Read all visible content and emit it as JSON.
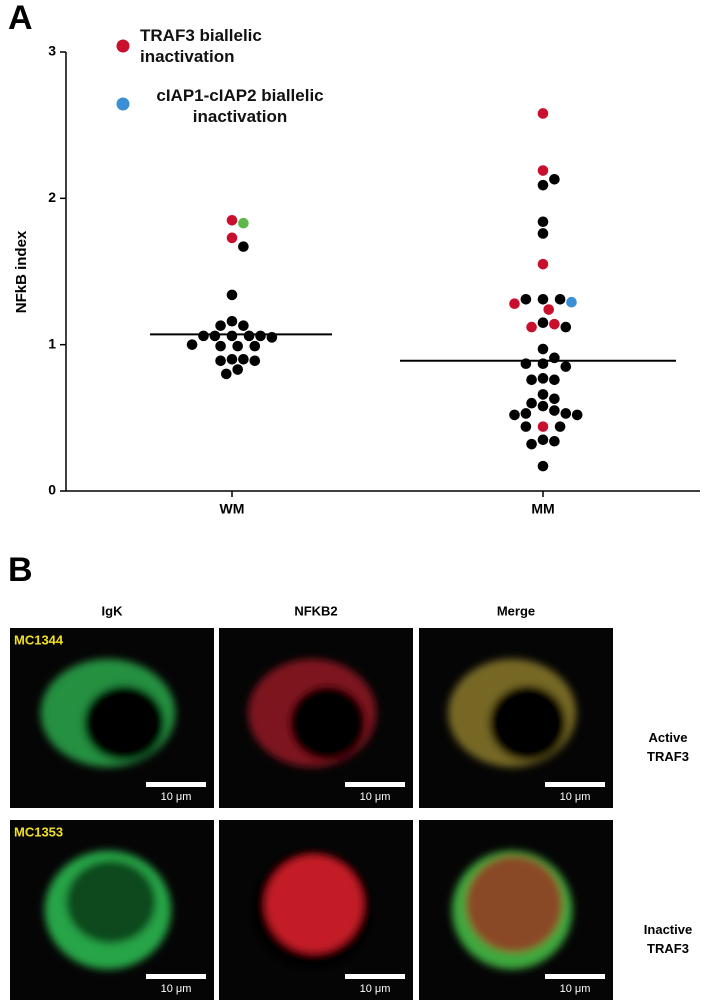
{
  "chart_data": {
    "type": "scatter",
    "panel": "A",
    "y_label": "NFkB index",
    "categories": [
      "WM",
      "MM"
    ],
    "ylim": [
      0,
      3
    ],
    "yticks": [
      0,
      1,
      2,
      3
    ],
    "medians": [
      1.07,
      0.89
    ],
    "series": [
      {
        "name": "TRAF3 biallelic inactivation",
        "color": "#c8102e",
        "values": [
          [
            1.73,
            1.85
          ],
          [
            2.58,
            2.19,
            1.55,
            1.28,
            1.24,
            1.14,
            1.12,
            0.44
          ]
        ]
      },
      {
        "name": "cIAP1-cIAP2 biallelic inactivation",
        "color": "#3b8fd4",
        "values": [
          [],
          [
            1.29
          ]
        ]
      },
      {
        "color": "#000000",
        "values": [
          [
            1.67,
            1.34,
            1.16,
            1.13,
            1.13,
            1.06,
            1.06,
            1.05,
            1.06,
            1.06,
            1.06,
            0.99,
            0.99,
            0.99,
            1.0,
            0.9,
            0.9,
            0.89,
            0.89,
            0.8,
            0.83
          ],
          [
            2.13,
            2.09,
            1.84,
            1.76,
            1.31,
            1.31,
            1.31,
            1.15,
            1.12,
            0.97,
            0.91,
            0.87,
            0.87,
            0.85,
            0.76,
            0.76,
            0.77,
            0.66,
            0.63,
            0.6,
            0.55,
            0.58,
            0.53,
            0.53,
            0.52,
            0.52,
            0.44,
            0.44,
            0.35,
            0.32,
            0.34,
            0.17
          ]
        ]
      },
      {
        "color": "#5cb848",
        "values": [
          [
            1.83
          ],
          []
        ]
      }
    ]
  },
  "panel_b": {
    "panel": "B",
    "columns": [
      "IgK",
      "NFKB2",
      "Merge"
    ],
    "rows": [
      {
        "sample": "MC1344",
        "label": "Active TRAF3"
      },
      {
        "sample": "MC1353",
        "label": "Inactive TRAF3"
      }
    ],
    "scale_bar": "10 μm"
  }
}
